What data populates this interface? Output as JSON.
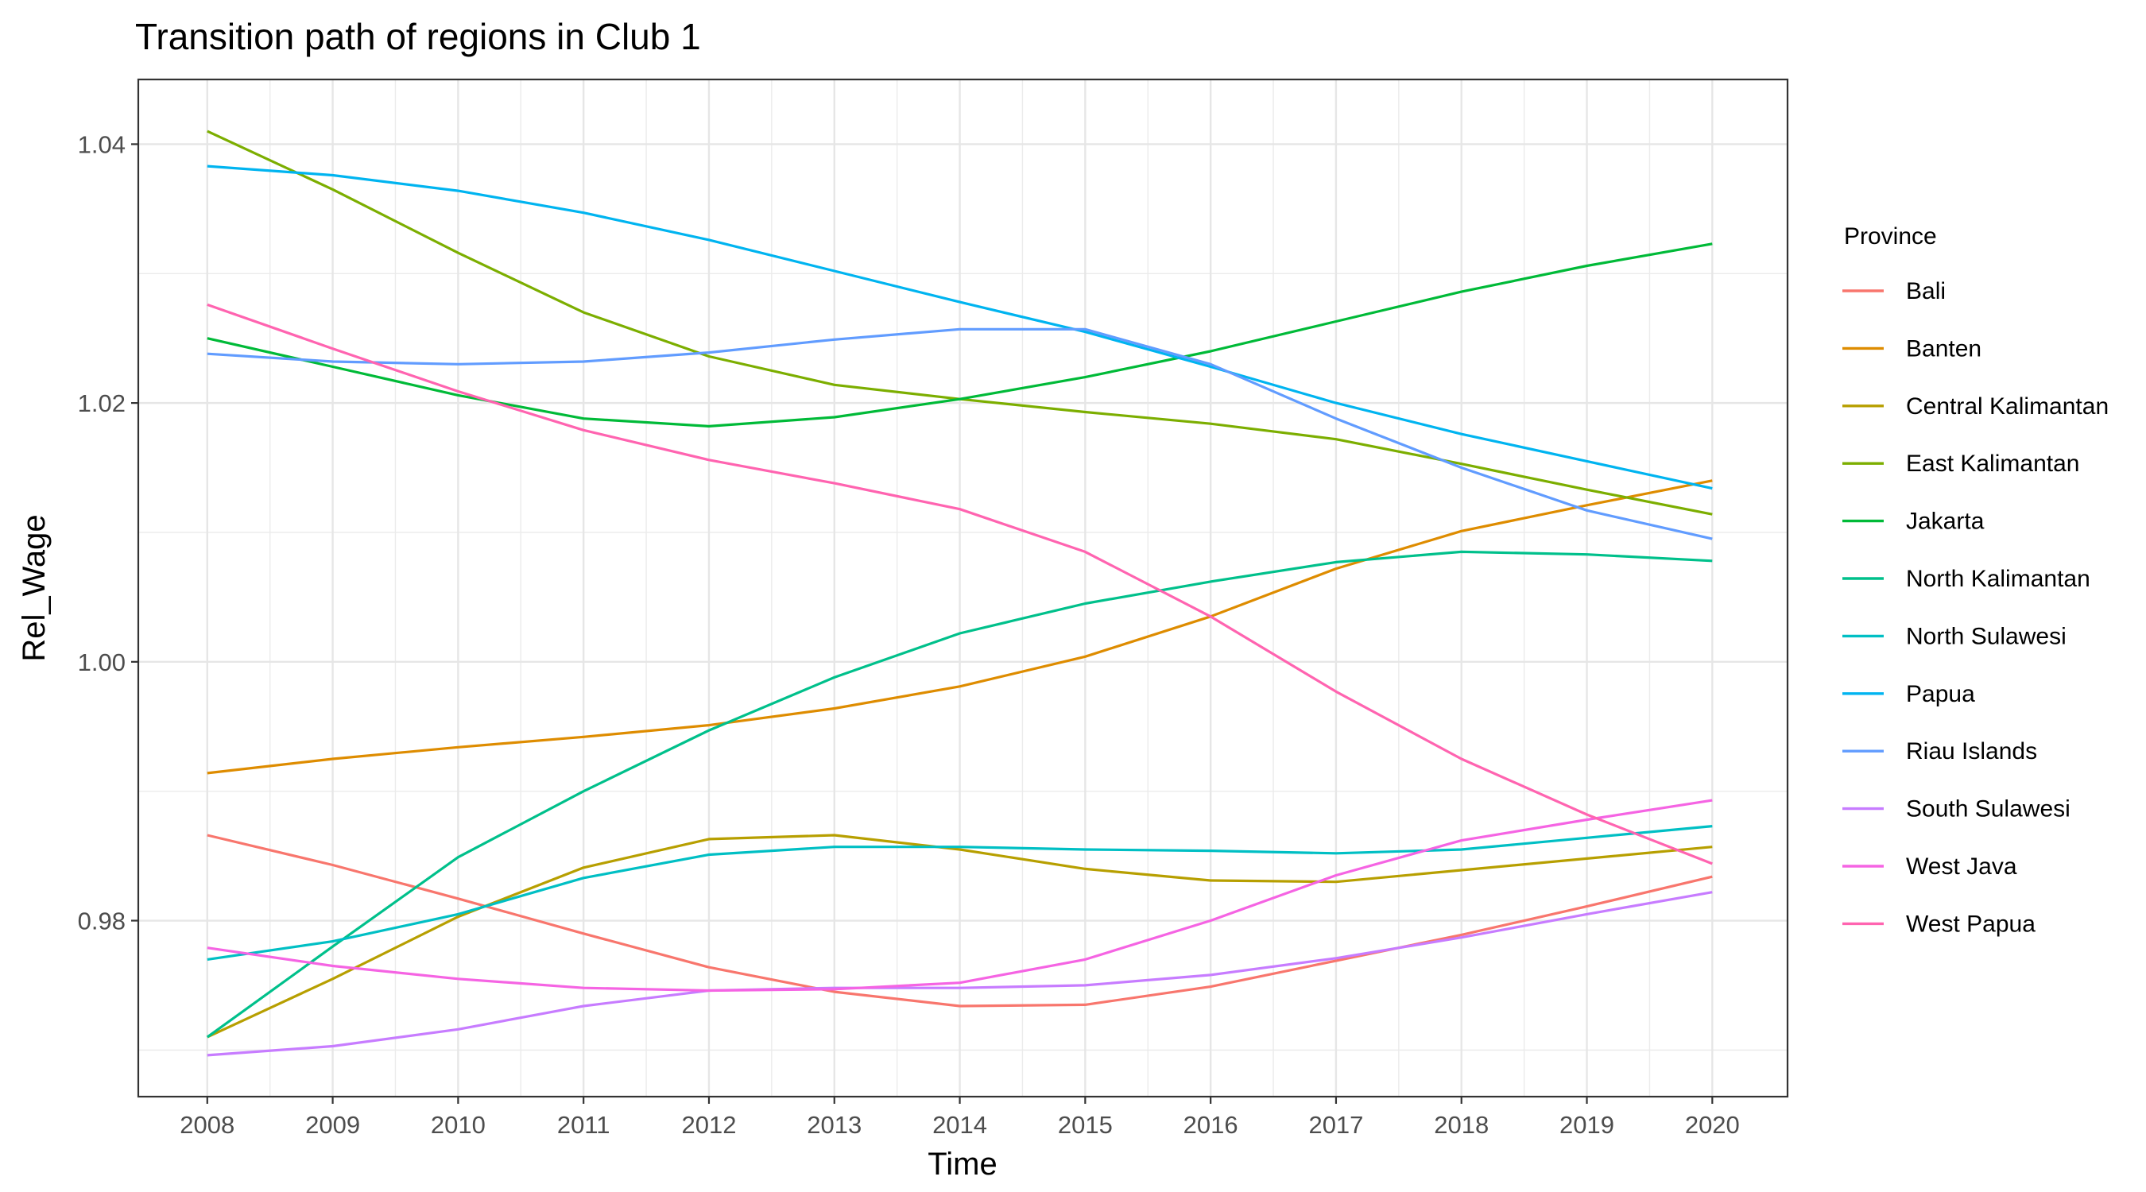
{
  "chart_data": {
    "type": "line",
    "title": "Transition path of regions in Club 1",
    "xlabel": "Time",
    "ylabel": "Rel_Wage",
    "x": [
      2008,
      2009,
      2010,
      2011,
      2012,
      2013,
      2014,
      2015,
      2016,
      2017,
      2018,
      2019,
      2020
    ],
    "x_ticks": [
      "2008",
      "2009",
      "2010",
      "2011",
      "2012",
      "2013",
      "2014",
      "2015",
      "2016",
      "2017",
      "2018",
      "2019",
      "2020"
    ],
    "xlim": [
      2007.45,
      2020.6
    ],
    "y_ticks": [
      "0.98",
      "1.00",
      "1.02",
      "1.04"
    ],
    "y_tick_values": [
      0.98,
      1.0,
      1.02,
      1.04
    ],
    "ylim": [
      0.9664,
      1.045
    ],
    "grid": true,
    "legend": {
      "title": "Province",
      "position": "right"
    },
    "series": [
      {
        "name": "Bali",
        "color": "#F8766D",
        "values": [
          0.9866,
          0.9843,
          0.9817,
          0.979,
          0.9764,
          0.9745,
          0.9734,
          0.9735,
          0.9749,
          0.9769,
          0.9789,
          0.9811,
          0.9834
        ]
      },
      {
        "name": "Banten",
        "color": "#DE8C00",
        "values": [
          0.9914,
          0.9925,
          0.9934,
          0.9942,
          0.9951,
          0.9964,
          0.9981,
          1.0004,
          1.0035,
          1.0072,
          1.0101,
          1.0121,
          1.014
        ]
      },
      {
        "name": "Central Kalimantan",
        "color": "#B79F00",
        "values": [
          0.971,
          0.9755,
          0.9803,
          0.9841,
          0.9863,
          0.9866,
          0.9855,
          0.984,
          0.9831,
          0.983,
          0.9839,
          0.9848,
          0.9857
        ]
      },
      {
        "name": "East Kalimantan",
        "color": "#7CAE00",
        "values": [
          1.041,
          1.0365,
          1.0316,
          1.027,
          1.0236,
          1.0214,
          1.0203,
          1.0193,
          1.0184,
          1.0172,
          1.0153,
          1.0133,
          1.0114
        ]
      },
      {
        "name": "Jakarta",
        "color": "#00BA38",
        "values": [
          1.025,
          1.0228,
          1.0206,
          1.0188,
          1.0182,
          1.0189,
          1.0203,
          1.022,
          1.024,
          1.0263,
          1.0286,
          1.0306,
          1.0323
        ]
      },
      {
        "name": "North Kalimantan",
        "color": "#00C08B",
        "values": [
          0.971,
          0.978,
          0.9849,
          0.99,
          0.9947,
          0.9988,
          1.0022,
          1.0045,
          1.0062,
          1.0077,
          1.0085,
          1.0083,
          1.0078
        ]
      },
      {
        "name": "North Sulawesi",
        "color": "#00BFC4",
        "values": [
          0.977,
          0.9784,
          0.9805,
          0.9833,
          0.9851,
          0.9857,
          0.9857,
          0.9855,
          0.9854,
          0.9852,
          0.9855,
          0.9864,
          0.9873
        ]
      },
      {
        "name": "Papua",
        "color": "#00B4F0",
        "values": [
          1.0383,
          1.0376,
          1.0364,
          1.0347,
          1.0326,
          1.0302,
          1.0278,
          1.0255,
          1.0228,
          1.02,
          1.0176,
          1.0155,
          1.0134
        ]
      },
      {
        "name": "Riau Islands",
        "color": "#619CFF",
        "values": [
          1.0238,
          1.0232,
          1.023,
          1.0232,
          1.0239,
          1.0249,
          1.0257,
          1.0257,
          1.023,
          1.0188,
          1.015,
          1.0117,
          1.0095
        ]
      },
      {
        "name": "South Sulawesi",
        "color": "#C77CFF",
        "values": [
          0.9696,
          0.9703,
          0.9716,
          0.9734,
          0.9746,
          0.9748,
          0.9748,
          0.975,
          0.9758,
          0.9771,
          0.9787,
          0.9805,
          0.9822
        ]
      },
      {
        "name": "West Java",
        "color": "#F564E3",
        "values": [
          0.9779,
          0.9765,
          0.9755,
          0.9748,
          0.9746,
          0.9747,
          0.9752,
          0.977,
          0.98,
          0.9835,
          0.9862,
          0.9878,
          0.9893
        ]
      },
      {
        "name": "West Papua",
        "color": "#FF64B0",
        "values": [
          1.0276,
          1.0242,
          1.0209,
          1.0179,
          1.0156,
          1.0138,
          1.0118,
          1.0085,
          1.0035,
          0.9977,
          0.9925,
          0.9882,
          0.9844
        ]
      }
    ]
  }
}
